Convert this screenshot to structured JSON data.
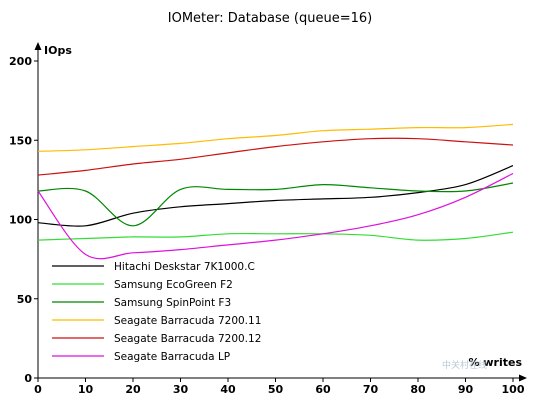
{
  "chart_data": {
    "type": "line",
    "title": "IOMeter: Database (queue=16)",
    "ylabel": "IOps",
    "xlabel": "% writes",
    "xlim": [
      0,
      100
    ],
    "ylim": [
      0,
      200
    ],
    "xticks": [
      0,
      10,
      20,
      30,
      40,
      50,
      60,
      70,
      80,
      90,
      100
    ],
    "yticks": [
      0,
      50,
      100,
      150,
      200
    ],
    "grid": false,
    "legend_position": "bottom-left",
    "x": [
      0,
      10,
      20,
      30,
      40,
      50,
      60,
      70,
      80,
      90,
      100
    ],
    "series": [
      {
        "name": "Hitachi Deskstar 7K1000.C",
        "color": "#000000",
        "values": [
          98,
          96,
          104,
          108,
          110,
          112,
          113,
          114,
          117,
          122,
          134
        ]
      },
      {
        "name": "Samsung EcoGreen F2",
        "color": "#33dd33",
        "values": [
          87,
          88,
          89,
          89,
          91,
          91,
          91,
          90,
          87,
          88,
          92
        ]
      },
      {
        "name": "Samsung SpinPoint F3",
        "color": "#008800",
        "values": [
          118,
          118,
          96,
          119,
          119,
          119,
          122,
          120,
          118,
          118,
          123
        ]
      },
      {
        "name": "Seagate Barracuda 7200.11",
        "color": "#ffbb00",
        "values": [
          143,
          144,
          146,
          148,
          151,
          153,
          156,
          157,
          158,
          158,
          160
        ]
      },
      {
        "name": "Seagate Barracuda 7200.12",
        "color": "#cc1111",
        "values": [
          128,
          131,
          135,
          138,
          142,
          146,
          149,
          151,
          151,
          149,
          147
        ]
      },
      {
        "name": "Seagate Barracuda LP",
        "color": "#dd11dd",
        "values": [
          118,
          78,
          79,
          81,
          84,
          87,
          91,
          96,
          103,
          114,
          129
        ]
      }
    ]
  },
  "watermark": "中关村在线"
}
